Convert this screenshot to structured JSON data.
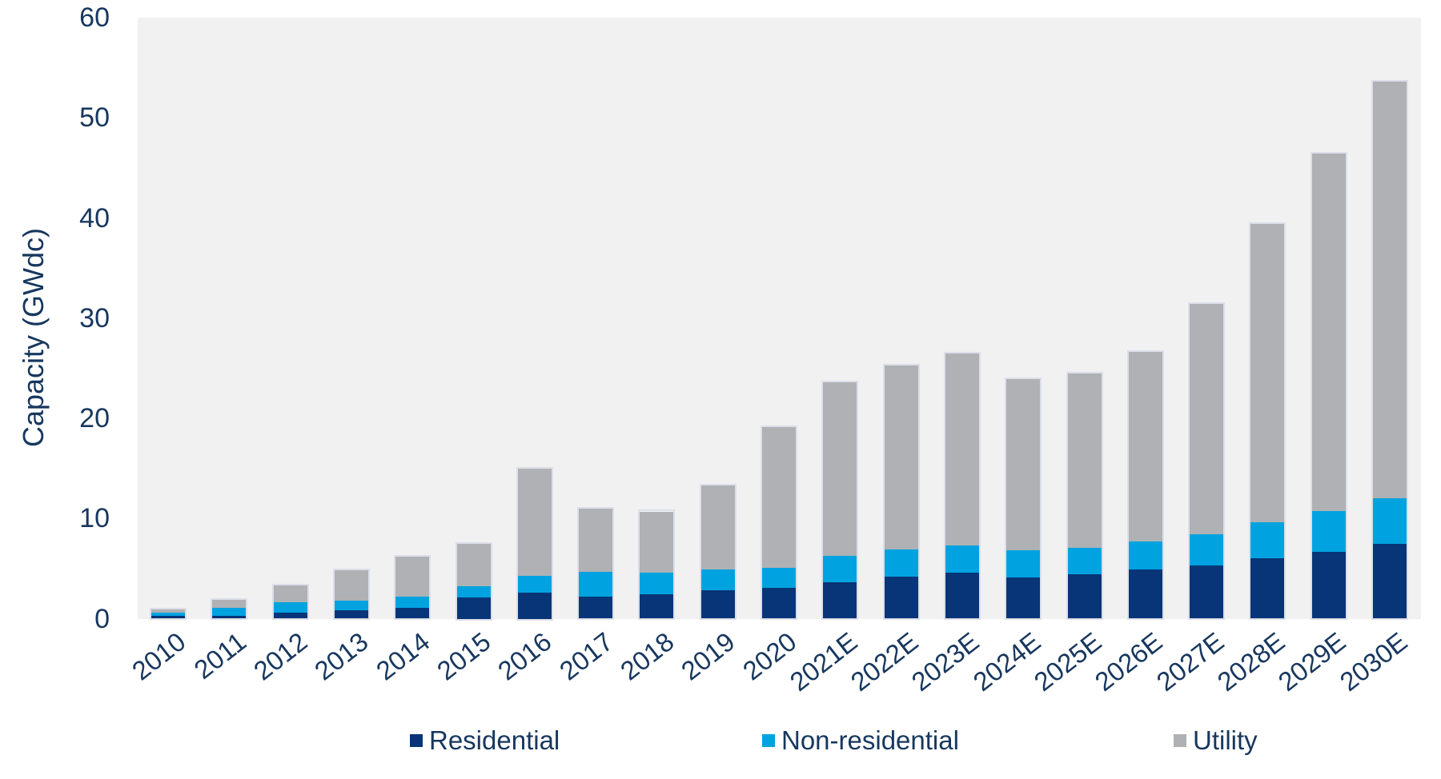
{
  "chart_data": {
    "type": "bar",
    "stacked": true,
    "ylabel": "Capacity (GWdc)",
    "ylim": [
      0,
      60
    ],
    "yticks": [
      0,
      10,
      20,
      30,
      40,
      50,
      60
    ],
    "grid": false,
    "legend_position": "bottom",
    "categories": [
      "2010",
      "2011",
      "2012",
      "2013",
      "2014",
      "2015",
      "2016",
      "2017",
      "2018",
      "2019",
      "2020",
      "2021E",
      "2022E",
      "2023E",
      "2024E",
      "2025E",
      "2026E",
      "2027E",
      "2028E",
      "2029E",
      "2030E"
    ],
    "series": [
      {
        "name": "Residential",
        "color": "#083577",
        "values": [
          0.3,
          0.3,
          0.6,
          0.8,
          1.1,
          2.1,
          2.6,
          2.2,
          2.4,
          2.8,
          3.1,
          3.6,
          4.2,
          4.6,
          4.1,
          4.4,
          4.9,
          5.3,
          6.0,
          6.7,
          7.5
        ]
      },
      {
        "name": "Non-residential",
        "color": "#00a3e0",
        "values": [
          0.3,
          0.8,
          1.0,
          1.0,
          1.1,
          1.1,
          1.7,
          2.5,
          2.2,
          2.1,
          2.0,
          2.7,
          2.7,
          2.7,
          2.7,
          2.7,
          2.8,
          3.1,
          3.6,
          4.0,
          4.5
        ]
      },
      {
        "name": "Utility",
        "color": "#afb1b4",
        "values": [
          0.3,
          0.8,
          1.7,
          3.0,
          4.0,
          4.3,
          10.7,
          6.3,
          6.1,
          8.4,
          14.0,
          17.3,
          18.4,
          19.2,
          17.1,
          17.4,
          18.9,
          23.0,
          29.8,
          35.7,
          41.6
        ]
      }
    ],
    "colors": {
      "plot_background": "#f1f1f2",
      "bar_outline": "#dcdfe8",
      "axis_text": "#17375e"
    }
  }
}
